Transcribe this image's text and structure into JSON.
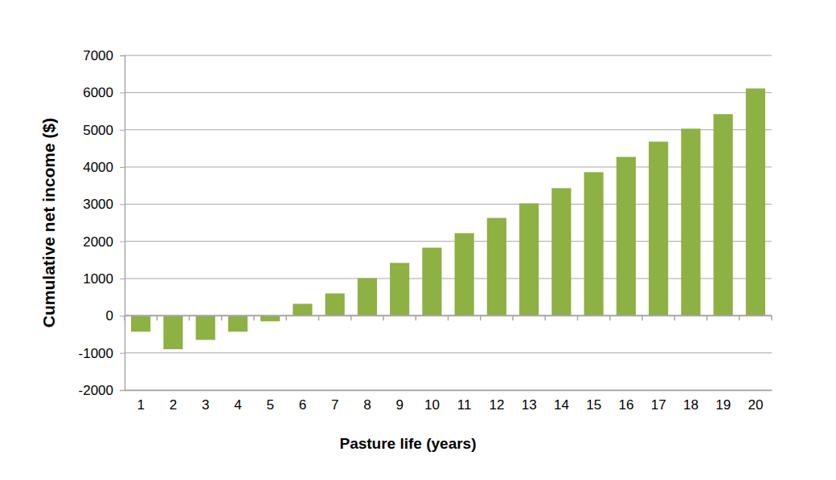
{
  "chart_data": {
    "type": "bar",
    "x_label": "Pasture life (years)",
    "y_label": "Cumulative net income ($)",
    "categories": [
      "1",
      "2",
      "3",
      "4",
      "5",
      "6",
      "7",
      "8",
      "9",
      "10",
      "11",
      "12",
      "13",
      "14",
      "15",
      "16",
      "17",
      "18",
      "19",
      "20"
    ],
    "values": [
      -430,
      -900,
      -650,
      -430,
      -150,
      320,
      600,
      1010,
      1420,
      1830,
      2220,
      2630,
      3020,
      3430,
      3860,
      4270,
      4680,
      5030,
      5420,
      6110
    ],
    "color": "#8db142",
    "ylim": [
      -2000,
      7000
    ],
    "yticks": [
      -2000,
      -1000,
      0,
      1000,
      2000,
      3000,
      4000,
      5000,
      6000,
      7000
    ],
    "grid": true
  }
}
